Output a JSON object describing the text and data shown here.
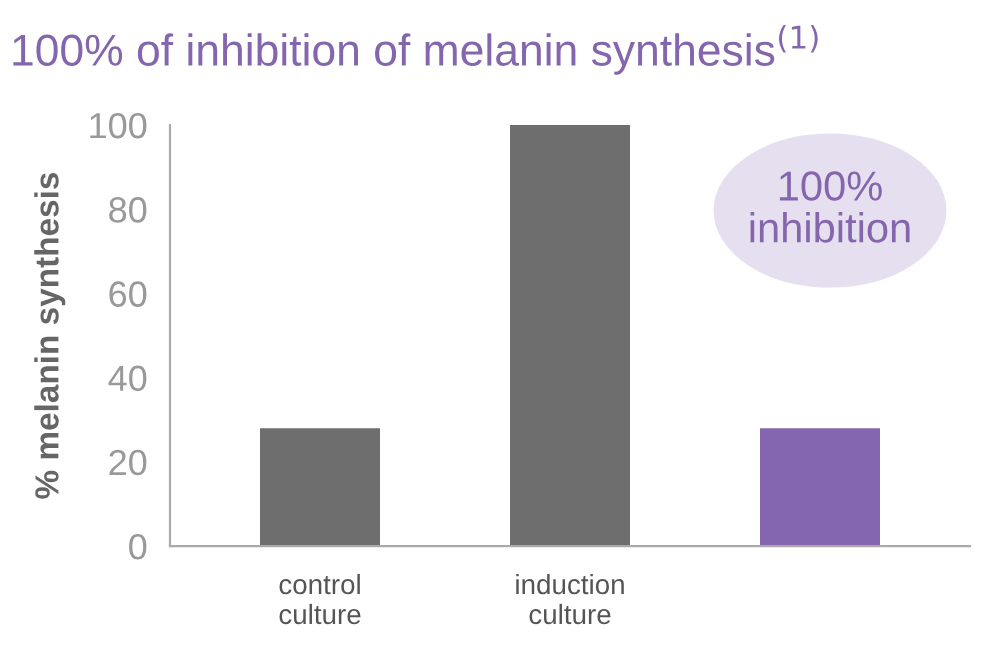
{
  "chart_data": {
    "type": "bar",
    "title": "100% of inhibition of melanin synthesis$^{(1)}$",
    "ylabel": "% melanin synthesis",
    "categories": [
      "control\nculture",
      "induction\nculture",
      null
    ],
    "values": [
      28,
      100,
      28
    ],
    "colors": [
      "#6e6e6e",
      "#6e6e6e",
      "#8466ae"
    ],
    "ylim": [
      0,
      100
    ],
    "yticks": [
      0,
      20,
      40,
      60,
      80,
      100
    ],
    "grid": false,
    "annotations": [
      "100%\ninhibition"
    ]
  }
}
